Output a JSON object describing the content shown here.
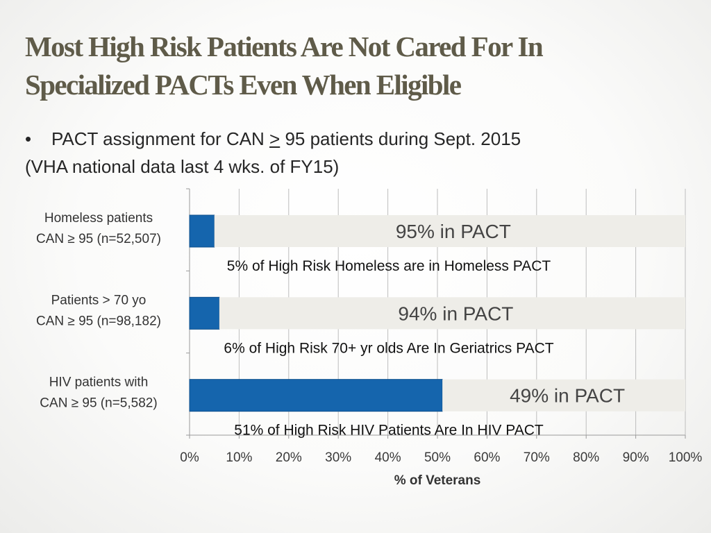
{
  "slide": {
    "title_line1": "Most High Risk Patients Are Not Cared For In",
    "title_line2": "Specialized PACTs Even When Eligible",
    "bullet_text_before": "PACT assignment for CAN ",
    "bullet_symbol": ">",
    "bullet_text_after": " 95 patients during Sept. 2015",
    "bullet_line2": "(VHA national data last 4 wks. of FY15)"
  },
  "chart_data": {
    "type": "bar",
    "orientation": "horizontal",
    "stacked": true,
    "xlabel": "% of Veterans",
    "xlim": [
      0,
      100
    ],
    "x_ticks": [
      "0%",
      "10%",
      "20%",
      "30%",
      "40%",
      "50%",
      "60%",
      "70%",
      "80%",
      "90%",
      "100%"
    ],
    "grid": true,
    "categories": [
      [
        "Homeless patients",
        "CAN ≥ 95 (n=52,507)"
      ],
      [
        "Patients > 70 yo",
        "CAN ≥ 95 (n=98,182)"
      ],
      [
        "HIV patients with",
        "CAN ≥ 95 (n=5,582)"
      ]
    ],
    "series": [
      {
        "name": "Specialized PACT",
        "color": "#1565ad",
        "values": [
          5,
          6,
          51
        ]
      },
      {
        "name": "PACT",
        "color": "#eeede8",
        "values": [
          95,
          94,
          49
        ]
      }
    ],
    "bar_labels": [
      "95% in PACT",
      "94% in PACT",
      "49% in PACT"
    ],
    "annotations": [
      "5% of High Risk Homeless are in Homeless PACT",
      "6% of High Risk 70+ yr olds Are In Geriatrics PACT",
      "51% of High Risk HIV Patients Are In HIV PACT"
    ]
  }
}
